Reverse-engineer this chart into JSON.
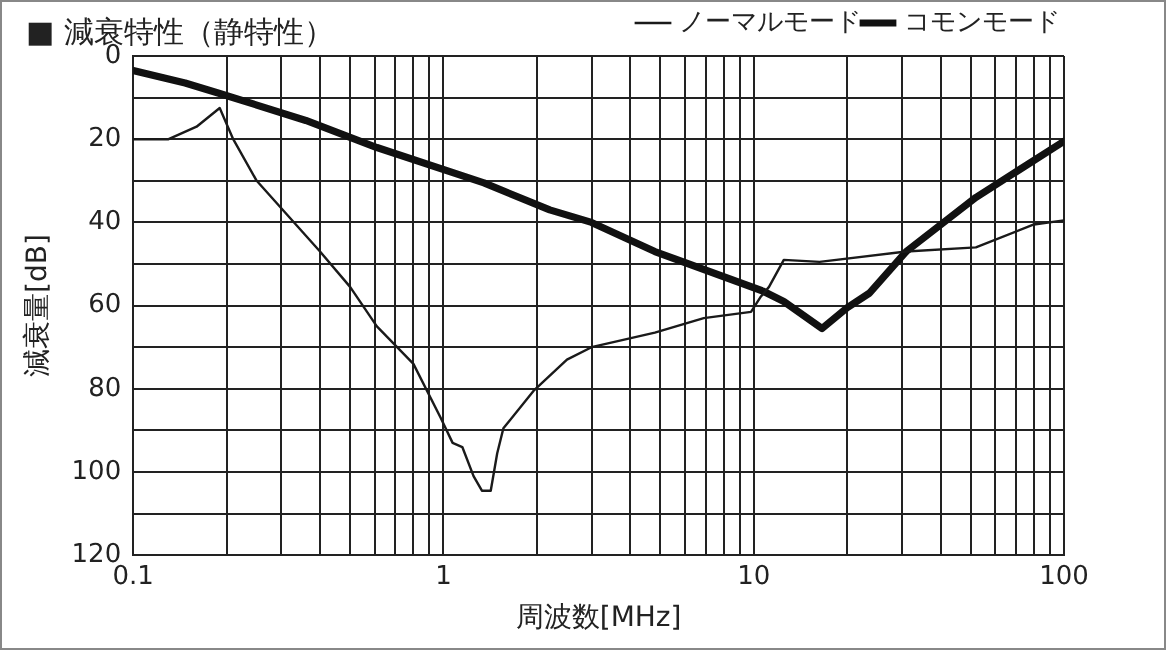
{
  "chart_data": {
    "type": "line",
    "title": "■ 減衰特性（静特性）",
    "xlabel": "周波数[MHz]",
    "ylabel": "減衰量[dB]",
    "log": "x",
    "grid": true,
    "legend": "top right",
    "marker": "none",
    "line_style": "solid",
    "xlim": [
      0.1,
      100
    ],
    "xticks": [
      0.1,
      {
        "value": 0.2,
        "label": null
      },
      {
        "value": 0.3,
        "label": null
      },
      {
        "value": 0.4,
        "label": null
      },
      {
        "value": 0.5,
        "label": null
      },
      {
        "value": 0.6,
        "label": null
      },
      {
        "value": 0.7,
        "label": null
      },
      {
        "value": 0.8,
        "label": null
      },
      {
        "value": 0.9,
        "label": null
      },
      1,
      {
        "value": 2,
        "label": null
      },
      {
        "value": 3,
        "label": null
      },
      {
        "value": 4,
        "label": null
      },
      {
        "value": 5,
        "label": null
      },
      {
        "value": 6,
        "label": null
      },
      {
        "value": 7,
        "label": null
      },
      {
        "value": 8,
        "label": null
      },
      {
        "value": 9,
        "label": null
      },
      10,
      {
        "value": 20,
        "label": null
      },
      {
        "value": 30,
        "label": null
      },
      {
        "value": 40,
        "label": null
      },
      {
        "value": 50,
        "label": null
      },
      {
        "value": 60,
        "label": null
      },
      {
        "value": 70,
        "label": null
      },
      {
        "value": 80,
        "label": null
      },
      {
        "value": 90,
        "label": null
      },
      100
    ],
    "ylim": [
      120,
      0
    ],
    "yticks": [
      0,
      {
        "value": 10,
        "label": null
      },
      20,
      {
        "value": 30,
        "label": null
      },
      40,
      {
        "value": 50,
        "label": null
      },
      60,
      {
        "value": 70,
        "label": null
      },
      80,
      {
        "value": 90,
        "label": null
      },
      100,
      {
        "value": 110,
        "label": null
      },
      120
    ],
    "series": [
      {
        "name": "ノーマルモード",
        "color": "#1a1a1a",
        "x": [
          0.1,
          0.13,
          0.16,
          0.19,
          0.21,
          0.25,
          0.4,
          0.5,
          0.61,
          0.8,
          0.98,
          1.07,
          1.15,
          1.25,
          1.33,
          1.42,
          1.49,
          1.56,
          1.95,
          2.5,
          3,
          4.8,
          6.9,
          9.8,
          10.5,
          11.2,
          12.5,
          16.3,
          31,
          52,
          80,
          100
        ],
        "values": [
          20,
          20,
          17,
          12.5,
          20,
          30,
          47,
          55.5,
          65,
          74,
          87,
          93,
          94,
          101,
          104.5,
          104.5,
          95.5,
          89.5,
          80.5,
          73,
          70,
          66.5,
          63,
          61.5,
          58,
          55.5,
          49,
          49.5,
          47,
          46,
          40.5,
          39.5
        ]
      },
      {
        "name": "コモンモード",
        "color": "#111111",
        "x": [
          0.1,
          0.147,
          0.19,
          0.36,
          0.61,
          1.35,
          2.2,
          3,
          4.8,
          10.7,
          12.5,
          16.6,
          20,
          23.6,
          31,
          52,
          100
        ],
        "values": [
          3.5,
          6.5,
          9,
          15.5,
          22,
          30.5,
          37,
          40,
          47,
          56.5,
          59,
          65.5,
          60.5,
          57,
          47,
          34,
          20.5
        ]
      }
    ]
  }
}
